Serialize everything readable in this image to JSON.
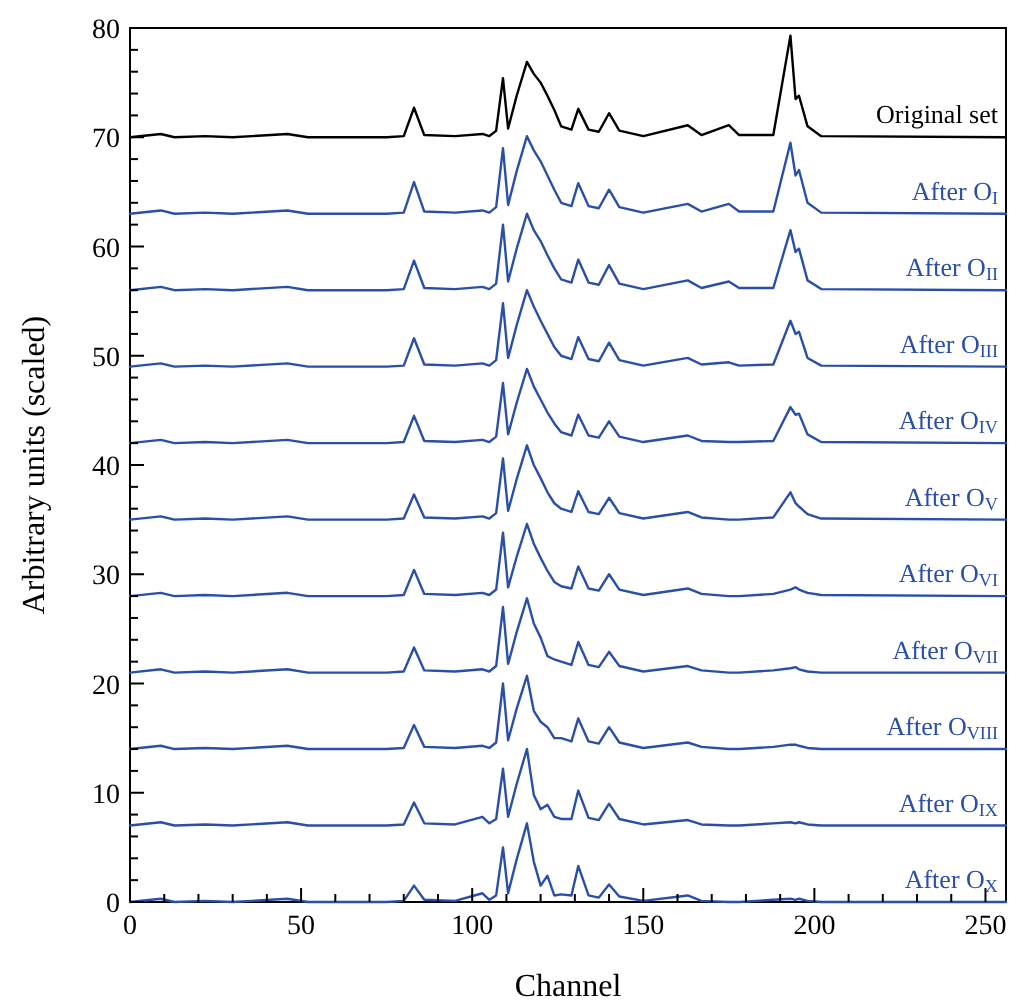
{
  "chart_data": {
    "type": "line",
    "xlabel": "Channel",
    "ylabel": "Arbitrary units (scaled)",
    "xlim": [
      0,
      256
    ],
    "ylim": [
      0,
      80
    ],
    "xticks": [
      0,
      {
        "value": 10,
        "label": null
      },
      {
        "value": 20,
        "label": null
      },
      {
        "value": 30,
        "label": null
      },
      {
        "value": 40,
        "label": null
      },
      50,
      {
        "value": 60,
        "label": null
      },
      {
        "value": 70,
        "label": null
      },
      {
        "value": 80,
        "label": null
      },
      {
        "value": 90,
        "label": null
      },
      100,
      {
        "value": 110,
        "label": null
      },
      {
        "value": 120,
        "label": null
      },
      {
        "value": 130,
        "label": null
      },
      {
        "value": 140,
        "label": null
      },
      150,
      {
        "value": 160,
        "label": null
      },
      {
        "value": 170,
        "label": null
      },
      {
        "value": 180,
        "label": null
      },
      {
        "value": 190,
        "label": null
      },
      200,
      {
        "value": 210,
        "label": null
      },
      {
        "value": 220,
        "label": null
      },
      {
        "value": 230,
        "label": null
      },
      {
        "value": 240,
        "label": null
      },
      250
    ],
    "yticks": [
      0,
      {
        "value": 2,
        "label": null
      },
      {
        "value": 4,
        "label": null
      },
      {
        "value": 6,
        "label": null
      },
      {
        "value": 8,
        "label": null
      },
      10,
      {
        "value": 12,
        "label": null
      },
      {
        "value": 14,
        "label": null
      },
      {
        "value": 16,
        "label": null
      },
      {
        "value": 18,
        "label": null
      },
      20,
      {
        "value": 22,
        "label": null
      },
      {
        "value": 24,
        "label": null
      },
      {
        "value": 26,
        "label": null
      },
      {
        "value": 28,
        "label": null
      },
      30,
      {
        "value": 32,
        "label": null
      },
      {
        "value": 34,
        "label": null
      },
      {
        "value": 36,
        "label": null
      },
      {
        "value": 38,
        "label": null
      },
      40,
      {
        "value": 42,
        "label": null
      },
      {
        "value": 44,
        "label": null
      },
      {
        "value": 46,
        "label": null
      },
      {
        "value": 48,
        "label": null
      },
      50,
      {
        "value": 52,
        "label": null
      },
      {
        "value": 54,
        "label": null
      },
      {
        "value": 56,
        "label": null
      },
      {
        "value": 58,
        "label": null
      },
      60,
      {
        "value": 62,
        "label": null
      },
      {
        "value": 64,
        "label": null
      },
      {
        "value": 66,
        "label": null
      },
      {
        "value": 68,
        "label": null
      },
      70,
      {
        "value": 72,
        "label": null
      },
      {
        "value": 74,
        "label": null
      },
      {
        "value": 76,
        "label": null
      },
      {
        "value": 78,
        "label": null
      },
      80
    ],
    "x": [
      0,
      9,
      13,
      22,
      30,
      46,
      52,
      75,
      80,
      83,
      86,
      95,
      103,
      105,
      107,
      109,
      110.5,
      113,
      116,
      118,
      120,
      122,
      124,
      126,
      129,
      131,
      134,
      137,
      140,
      143,
      150,
      163,
      167,
      175,
      178,
      188,
      193,
      194.5,
      195.5,
      198,
      202,
      256
    ],
    "legend": false,
    "line_style": "solid",
    "marker": "none",
    "series": [
      {
        "name": "Original set",
        "color": "#000000",
        "values": [
          70,
          70.3,
          70,
          70.1,
          70,
          70.3,
          70,
          70,
          70.1,
          72.7,
          70.2,
          70.1,
          70.3,
          70.1,
          70.6,
          75.4,
          70.8,
          73.8,
          76.9,
          75.8,
          75,
          73.8,
          72.5,
          71,
          70.7,
          72.6,
          70.7,
          70.5,
          72.2,
          70.6,
          70.1,
          71.1,
          70.2,
          71.1,
          70.2,
          70.2,
          79.3,
          73.5,
          73.8,
          71,
          70.1,
          70
        ]
      },
      {
        "name": "After O$_{I}$",
        "color": "#2a4fa8",
        "values": [
          63,
          63.3,
          63,
          63.1,
          63,
          63.3,
          63,
          63,
          63.1,
          65.9,
          63.2,
          63.1,
          63.3,
          63.1,
          63.6,
          69,
          63.8,
          66.9,
          70.1,
          68.8,
          67.8,
          66.5,
          65.2,
          64,
          63.7,
          65.8,
          63.7,
          63.5,
          65.2,
          63.6,
          63.1,
          63.9,
          63.2,
          63.9,
          63.2,
          63.2,
          69.5,
          66.5,
          67,
          64,
          63.1,
          63
        ]
      },
      {
        "name": "After O$_{II}$",
        "color": "#2a4fa8",
        "values": [
          56,
          56.3,
          56,
          56.1,
          56,
          56.3,
          56,
          56,
          56.1,
          58.7,
          56.2,
          56.1,
          56.3,
          56.1,
          56.6,
          62,
          56.8,
          59.8,
          63,
          61.5,
          60.5,
          59.2,
          58,
          57,
          56.7,
          58.8,
          56.7,
          56.5,
          58.3,
          56.6,
          56.1,
          56.9,
          56.2,
          56.8,
          56.2,
          56.2,
          61.5,
          59.5,
          59.8,
          56.9,
          56.1,
          56
        ]
      },
      {
        "name": "After O$_{III}$",
        "color": "#2a4fa8",
        "values": [
          49,
          49.3,
          49,
          49.1,
          49,
          49.3,
          49,
          49,
          49.1,
          51.6,
          49.2,
          49.1,
          49.3,
          49.1,
          49.6,
          54.8,
          49.8,
          52.8,
          56,
          54.5,
          53.2,
          52,
          50.8,
          50,
          49.7,
          51.7,
          49.7,
          49.5,
          51.2,
          49.6,
          49.1,
          49.8,
          49.2,
          49.4,
          49.1,
          49.2,
          53.2,
          52,
          52.2,
          49.8,
          49.1,
          49
        ]
      },
      {
        "name": "After O$_{IV}$",
        "color": "#2a4fa8",
        "values": [
          42,
          42.3,
          42,
          42.1,
          42,
          42.3,
          42,
          42,
          42.1,
          44.5,
          42.2,
          42.1,
          42.3,
          42.1,
          42.6,
          47.5,
          42.8,
          45.7,
          48.8,
          47.2,
          46,
          44.8,
          43.8,
          43,
          42.7,
          44.6,
          42.7,
          42.5,
          44,
          42.6,
          42.1,
          42.7,
          42.2,
          42.1,
          42.1,
          42.2,
          45.3,
          44.6,
          44.7,
          42.8,
          42.1,
          42
        ]
      },
      {
        "name": "After O$_{V}$",
        "color": "#2a4fa8",
        "values": [
          35,
          35.3,
          35,
          35.1,
          35,
          35.3,
          35,
          35,
          35.1,
          37.3,
          35.2,
          35.1,
          35.3,
          35.1,
          35.6,
          40.6,
          35.8,
          38.7,
          41.8,
          40,
          38.8,
          37.5,
          36.5,
          36,
          35.7,
          37.6,
          35.7,
          35.5,
          37,
          35.6,
          35.1,
          35.7,
          35.2,
          35,
          35,
          35.2,
          37.5,
          36.5,
          36.2,
          35.5,
          35.1,
          35
        ]
      },
      {
        "name": "After O$_{VI}$",
        "color": "#2a4fa8",
        "values": [
          28,
          28.3,
          28,
          28.1,
          28,
          28.3,
          28,
          28,
          28.1,
          30.4,
          28.2,
          28.1,
          28.3,
          28.1,
          28.6,
          33.8,
          28.8,
          31.6,
          34.6,
          32.8,
          31.5,
          30.3,
          29.3,
          28.9,
          28.7,
          30.7,
          28.7,
          28.5,
          30,
          28.6,
          28.1,
          28.7,
          28.2,
          28,
          28,
          28.2,
          28.6,
          28.8,
          28.6,
          28.3,
          28.1,
          28
        ]
      },
      {
        "name": "After O$_{VII}$",
        "color": "#2a4fa8",
        "values": [
          21,
          21.3,
          21,
          21.1,
          21,
          21.3,
          21,
          21,
          21.1,
          23.3,
          21.2,
          21.1,
          21.3,
          21.1,
          21.6,
          27,
          21.8,
          24.7,
          27.8,
          25.5,
          24.2,
          22.5,
          22.2,
          22,
          21.7,
          23.8,
          21.7,
          21.5,
          22.9,
          21.6,
          21.1,
          21.6,
          21.2,
          21,
          21,
          21.2,
          21.4,
          21.5,
          21.3,
          21.1,
          21,
          21
        ]
      },
      {
        "name": "After O$_{VIII}$",
        "color": "#2a4fa8",
        "values": [
          14,
          14.3,
          14,
          14.1,
          14,
          14.3,
          14,
          14,
          14.1,
          16.2,
          14.2,
          14.1,
          14.3,
          14.1,
          14.6,
          20,
          14.8,
          17.7,
          20.7,
          17.5,
          16.5,
          16,
          15,
          15,
          14.7,
          16.8,
          14.7,
          14.5,
          16,
          14.6,
          14.1,
          14.6,
          14.2,
          14,
          14,
          14.2,
          14.4,
          14.4,
          14.3,
          14.1,
          14,
          14
        ]
      },
      {
        "name": "After O$_{IX}$",
        "color": "#2a4fa8",
        "values": [
          7,
          7.3,
          7,
          7.1,
          7,
          7.3,
          7,
          7,
          7.1,
          9.1,
          7.2,
          7.1,
          7.8,
          7.2,
          7.6,
          12.2,
          7.8,
          10.8,
          14,
          9.8,
          8.5,
          8.9,
          7.8,
          7.6,
          7.6,
          10.2,
          7.7,
          7.5,
          9,
          7.6,
          7.1,
          7.5,
          7.1,
          7,
          7,
          7.2,
          7.3,
          7.2,
          7.3,
          7.1,
          7,
          7
        ]
      },
      {
        "name": "After O$_{X}$",
        "color": "#2a4fa8",
        "values": [
          0,
          0.3,
          0,
          0.1,
          0,
          0.3,
          0,
          0,
          0.1,
          1.5,
          0.2,
          0.1,
          0.8,
          0.2,
          0.6,
          5,
          0.8,
          3.9,
          7.2,
          3.7,
          1.5,
          2.4,
          0.6,
          0.7,
          0.6,
          3.3,
          0.6,
          0.4,
          1.6,
          0.5,
          0.1,
          0.6,
          0.1,
          0,
          0,
          0.2,
          0.3,
          0.2,
          0.3,
          0.1,
          0,
          0
        ]
      }
    ]
  }
}
